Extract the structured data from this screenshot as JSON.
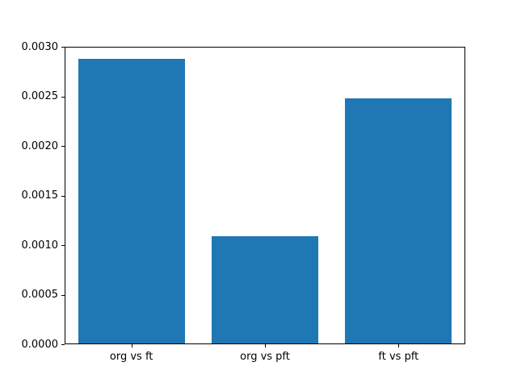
{
  "figure": {
    "background": "#ffffff",
    "plot_background": "#ffffff",
    "spine_color": "#000000",
    "tick_color": "#000000",
    "text_color": "#000000"
  },
  "chart_data": {
    "type": "bar",
    "title": "",
    "xlabel": "",
    "ylabel": "",
    "categories": [
      "org vs ft",
      "org vs pft",
      "ft vs pft"
    ],
    "values": [
      0.00288,
      0.00109,
      0.00248
    ],
    "bar_color": "#1f77b4",
    "ylim": [
      0.0,
      0.003
    ],
    "ytick_values": [
      0.0,
      0.0005,
      0.001,
      0.0015,
      0.002,
      0.0025,
      0.003
    ],
    "ytick_labels": [
      "0.0000",
      "0.0005",
      "0.0010",
      "0.0015",
      "0.0020",
      "0.0025",
      "0.0030"
    ],
    "xlim": [
      -0.5,
      2.5
    ],
    "bar_width_fraction": 0.8,
    "grid": false,
    "legend": "none"
  }
}
